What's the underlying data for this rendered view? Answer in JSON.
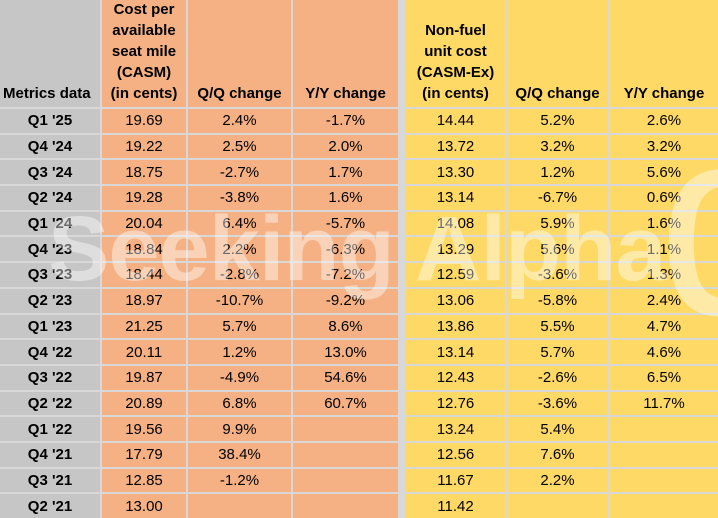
{
  "header": {
    "metrics_label": "Metrics data",
    "casm_label": "Cost per\navailable\nseat mile\n(CASM)\n(in cents)",
    "qq_label": "Q/Q change",
    "yy_label": "Y/Y change",
    "casmex_label": "Non-fuel\nunit cost\n(CASM-Ex)\n(in cents)"
  },
  "watermark": {
    "text": "Seeking Alpha",
    "symbol": "α"
  },
  "colors": {
    "casm-fill": "#F5B183",
    "casmex-fill": "#FFD966",
    "label-fill": "#C6C6C6",
    "gridline": "#D8D8D8",
    "text": "#000000",
    "watermark": "#FFFFFF"
  },
  "chart_data": {
    "type": "table",
    "columns": [
      "Metrics data",
      "Cost per available seat mile (CASM) (in cents)",
      "Q/Q change",
      "Y/Y change",
      "Non-fuel unit cost (CASM-Ex) (in cents)",
      "Q/Q change",
      "Y/Y change"
    ],
    "rows": [
      [
        "Q1 '25",
        "19.69",
        "2.4%",
        "-1.7%",
        "14.44",
        "5.2%",
        "2.6%"
      ],
      [
        "Q4 '24",
        "19.22",
        "2.5%",
        "2.0%",
        "13.72",
        "3.2%",
        "3.2%"
      ],
      [
        "Q3 '24",
        "18.75",
        "-2.7%",
        "1.7%",
        "13.30",
        "1.2%",
        "5.6%"
      ],
      [
        "Q2 '24",
        "19.28",
        "-3.8%",
        "1.6%",
        "13.14",
        "-6.7%",
        "0.6%"
      ],
      [
        "Q1 '24",
        "20.04",
        "6.4%",
        "-5.7%",
        "14.08",
        "5.9%",
        "1.6%"
      ],
      [
        "Q4 '23",
        "18.84",
        "2.2%",
        "-6.3%",
        "13.29",
        "5.6%",
        "1.1%"
      ],
      [
        "Q3 '23",
        "18.44",
        "-2.8%",
        "-7.2%",
        "12.59",
        "-3.6%",
        "1.3%"
      ],
      [
        "Q2 '23",
        "18.97",
        "-10.7%",
        "-9.2%",
        "13.06",
        "-5.8%",
        "2.4%"
      ],
      [
        "Q1 '23",
        "21.25",
        "5.7%",
        "8.6%",
        "13.86",
        "5.5%",
        "4.7%"
      ],
      [
        "Q4 '22",
        "20.11",
        "1.2%",
        "13.0%",
        "13.14",
        "5.7%",
        "4.6%"
      ],
      [
        "Q3 '22",
        "19.87",
        "-4.9%",
        "54.6%",
        "12.43",
        "-2.6%",
        "6.5%"
      ],
      [
        "Q2 '22",
        "20.89",
        "6.8%",
        "60.7%",
        "12.76",
        "-3.6%",
        "11.7%"
      ],
      [
        "Q1 '22",
        "19.56",
        "9.9%",
        "",
        "13.24",
        "5.4%",
        ""
      ],
      [
        "Q4 '21",
        "17.79",
        "38.4%",
        "",
        "12.56",
        "7.6%",
        ""
      ],
      [
        "Q3 '21",
        "12.85",
        "-1.2%",
        "",
        "11.67",
        "2.2%",
        ""
      ],
      [
        "Q2 '21",
        "13.00",
        "",
        "",
        "11.42",
        "",
        ""
      ]
    ]
  }
}
